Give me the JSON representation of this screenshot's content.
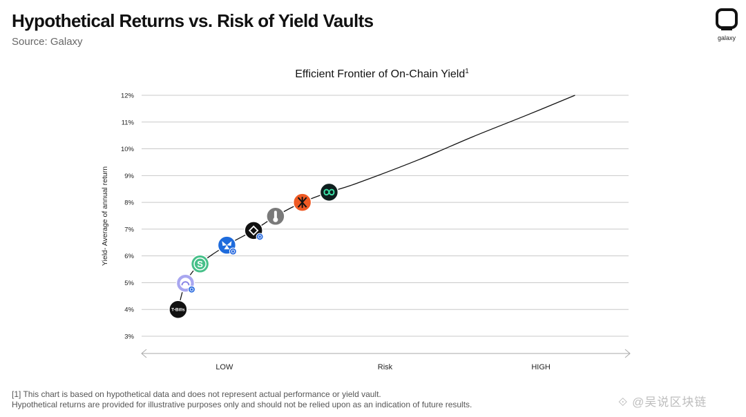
{
  "header": {
    "title": "Hypothetical Returns vs. Risk of Yield Vaults",
    "source": "Source: Galaxy",
    "logo_label": "galaxy"
  },
  "footnote": {
    "line1": "[1] This chart is based on hypothetical data and does not represent actual performance or yield vault.",
    "line2": "Hypothetical returns are provided for illustrative purposes only and should not be relied upon as an indication of future results."
  },
  "watermark": "⟐ @吴说区块链",
  "chart_data": {
    "type": "line",
    "title": "Efficient Frontier of On-Chain Yield",
    "title_superscript": "1",
    "ylabel": "Yield- Average of annual return",
    "xlabel": "Risk",
    "x_tick_labels": [
      "LOW",
      "HIGH"
    ],
    "ylim": [
      3,
      12
    ],
    "y_ticks": [
      "3%",
      "4%",
      "5%",
      "6%",
      "7%",
      "8%",
      "9%",
      "10%",
      "11%",
      "12%"
    ],
    "xlim": [
      0,
      10
    ],
    "grid": true,
    "series": [
      {
        "x": [
          0.75,
          0.9,
          1.2,
          1.75,
          2.3,
          2.75,
          3.3,
          3.85,
          4.4,
          5.7,
          6.8,
          7.9,
          8.9
        ],
        "y": [
          4.0,
          4.98,
          5.7,
          6.4,
          6.95,
          7.48,
          8.0,
          8.38,
          8.7,
          9.6,
          10.45,
          11.25,
          12.0
        ]
      }
    ],
    "markers": [
      {
        "x": 0.75,
        "y": 4.0,
        "label": "T-Bills",
        "color": "#111111",
        "icon": "tbills-token-icon",
        "badge": false
      },
      {
        "x": 0.9,
        "y": 4.98,
        "label": "",
        "color": "#a8a6f0",
        "icon": "protocol-token-icon",
        "badge": true
      },
      {
        "x": 1.2,
        "y": 5.7,
        "label": "",
        "color": "#46c089",
        "icon": "dollar-s-token-icon",
        "badge": false
      },
      {
        "x": 1.75,
        "y": 6.4,
        "label": "",
        "color": "#1e6bdc",
        "icon": "butterfly-token-icon",
        "badge": true
      },
      {
        "x": 2.3,
        "y": 6.95,
        "label": "",
        "color": "#111111",
        "icon": "diamond-token-icon",
        "badge": true
      },
      {
        "x": 2.75,
        "y": 7.48,
        "label": "",
        "color": "#7a7a7a",
        "icon": "thermometer-token-icon",
        "badge": false
      },
      {
        "x": 3.3,
        "y": 8.0,
        "label": "",
        "color": "#ef5a24",
        "icon": "fan-token-icon",
        "badge": false
      },
      {
        "x": 3.85,
        "y": 8.38,
        "label": "",
        "color": "#0f1f1f",
        "icon": "link-token-icon",
        "badge": false
      }
    ]
  }
}
